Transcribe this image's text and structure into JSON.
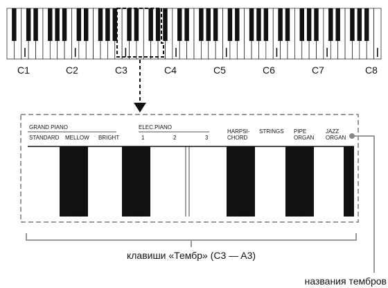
{
  "octave_labels": [
    "C1",
    "C2",
    "C3",
    "C4",
    "C5",
    "C6",
    "C7",
    "C8"
  ],
  "tone_groups": [
    {
      "group": "GRAND PIANO",
      "tones": [
        "STANDARD",
        "MELLOW",
        "BRIGHT"
      ]
    },
    {
      "group": "ELEC.PIANO",
      "tones": [
        "1",
        "2",
        "3"
      ]
    }
  ],
  "tone_names": [
    {
      "line1": "HARPSI-",
      "line2": "CHORD"
    },
    {
      "line1": "STRINGS",
      "line2": ""
    },
    {
      "line1": "PIPE",
      "line2": "ORGAN"
    },
    {
      "line1": "JAZZ",
      "line2": "ORGAN"
    }
  ],
  "captions": {
    "tone_keys": "клавиши «Тембр» (C3 — A3)",
    "tone_names": "названия тембров"
  },
  "keyboard": {
    "white_keys": 52,
    "first_note": "A0",
    "last_note": "C8"
  }
}
